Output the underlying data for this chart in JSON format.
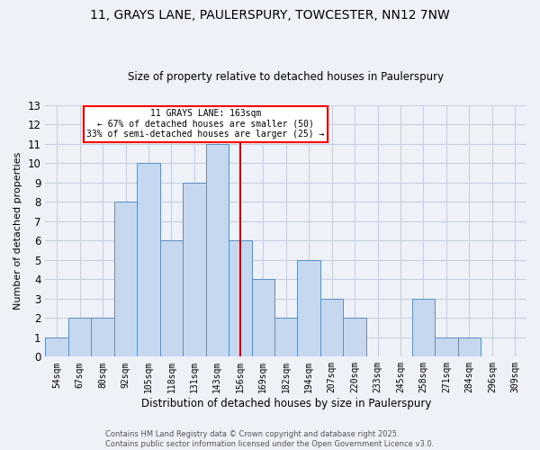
{
  "title1": "11, GRAYS LANE, PAULERSPURY, TOWCESTER, NN12 7NW",
  "title2": "Size of property relative to detached houses in Paulerspury",
  "xlabel": "Distribution of detached houses by size in Paulerspury",
  "ylabel": "Number of detached properties",
  "categories": [
    "54sqm",
    "67sqm",
    "80sqm",
    "92sqm",
    "105sqm",
    "118sqm",
    "131sqm",
    "143sqm",
    "156sqm",
    "169sqm",
    "182sqm",
    "194sqm",
    "207sqm",
    "220sqm",
    "233sqm",
    "245sqm",
    "258sqm",
    "271sqm",
    "284sqm",
    "296sqm",
    "309sqm"
  ],
  "values": [
    1,
    2,
    2,
    8,
    10,
    6,
    9,
    11,
    6,
    4,
    2,
    5,
    3,
    2,
    0,
    0,
    3,
    1,
    1,
    0,
    0
  ],
  "bar_color": "#c5d8f0",
  "bar_edge_color": "#5a8fc0",
  "vline_x_idx": 8,
  "vline_color": "#cc0000",
  "annotation_text": "11 GRAYS LANE: 163sqm\n← 67% of detached houses are smaller (50)\n33% of semi-detached houses are larger (25) →",
  "annotation_fontsize": 7.0,
  "ylim": [
    0,
    13
  ],
  "yticks": [
    0,
    1,
    2,
    3,
    4,
    5,
    6,
    7,
    8,
    9,
    10,
    11,
    12,
    13
  ],
  "footer1": "Contains HM Land Registry data © Crown copyright and database right 2025.",
  "footer2": "Contains public sector information licensed under the Open Government Licence v3.0.",
  "bg_color": "#eef2f8",
  "grid_color": "#c8d0df"
}
